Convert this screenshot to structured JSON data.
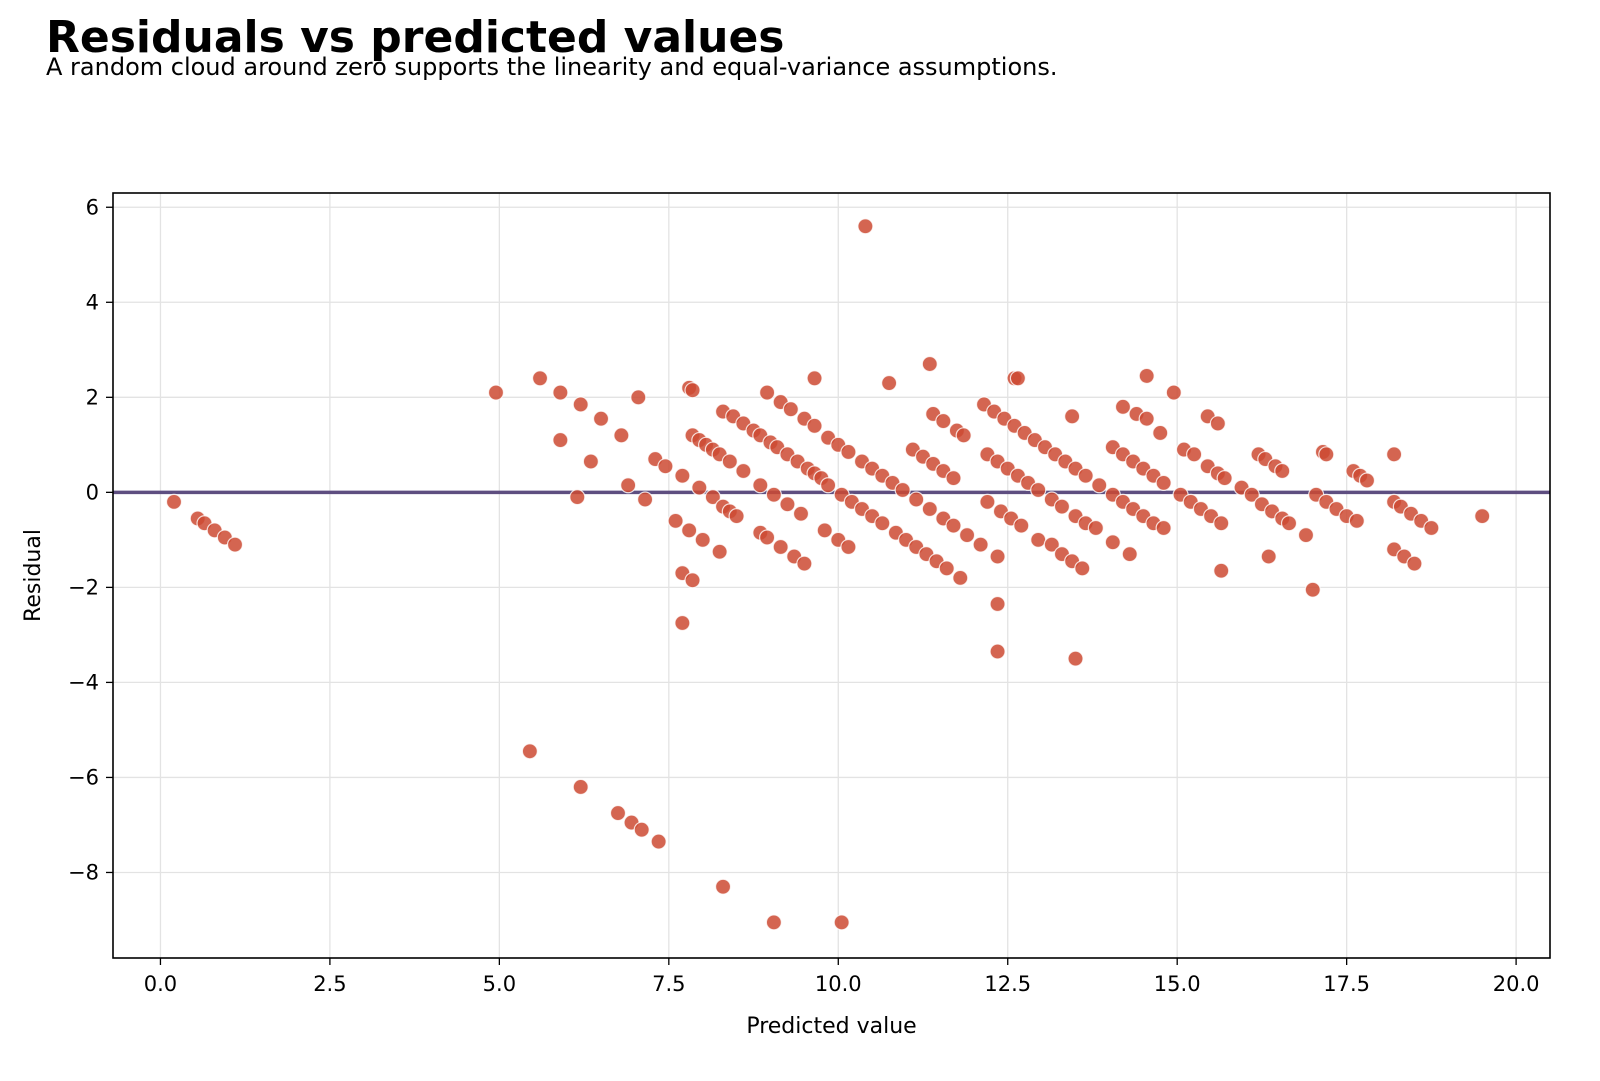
{
  "title": "Residuals vs predicted values",
  "subtitle": "A random cloud around zero supports the linearity and equal-variance assumptions.",
  "chart_data": {
    "type": "scatter",
    "xlabel": "Predicted value",
    "ylabel": "Residual",
    "xlim": [
      -0.7,
      20.5
    ],
    "ylim": [
      -9.8,
      6.3
    ],
    "xticks": [
      0.0,
      2.5,
      5.0,
      7.5,
      10.0,
      12.5,
      15.0,
      17.5,
      20.0
    ],
    "xtick_labels": [
      "0.0",
      "2.5",
      "5.0",
      "7.5",
      "10.0",
      "12.5",
      "15.0",
      "17.5",
      "20.0"
    ],
    "yticks": [
      -8,
      -6,
      -4,
      -2,
      0,
      2,
      4,
      6
    ],
    "ytick_labels": [
      "−8",
      "−6",
      "−4",
      "−2",
      "0",
      "2",
      "4",
      "6"
    ],
    "grid": true,
    "legend": "none",
    "point_color": "#cc4a32",
    "reference_line": {
      "y": 0,
      "color": "#5e4e80"
    },
    "points": [
      [
        0.2,
        -0.2
      ],
      [
        0.55,
        -0.55
      ],
      [
        0.65,
        -0.65
      ],
      [
        0.8,
        -0.8
      ],
      [
        0.95,
        -0.95
      ],
      [
        1.1,
        -1.1
      ],
      [
        4.95,
        2.1
      ],
      [
        5.6,
        2.4
      ],
      [
        5.9,
        2.1
      ],
      [
        5.9,
        1.1
      ],
      [
        6.2,
        1.85
      ],
      [
        6.5,
        1.55
      ],
      [
        6.8,
        1.2
      ],
      [
        7.05,
        2.0
      ],
      [
        6.35,
        0.65
      ],
      [
        6.9,
        0.15
      ],
      [
        6.15,
        -0.1
      ],
      [
        7.15,
        -0.15
      ],
      [
        7.3,
        0.7
      ],
      [
        7.45,
        0.55
      ],
      [
        7.6,
        -0.6
      ],
      [
        7.7,
        0.35
      ],
      [
        7.8,
        -0.8
      ],
      [
        8.0,
        -1.0
      ],
      [
        8.25,
        -1.25
      ],
      [
        7.7,
        -1.7
      ],
      [
        7.85,
        -1.85
      ],
      [
        7.7,
        -2.75
      ],
      [
        7.8,
        2.2
      ],
      [
        7.85,
        2.15
      ],
      [
        7.85,
        1.2
      ],
      [
        7.95,
        1.1
      ],
      [
        8.05,
        1.0
      ],
      [
        8.15,
        0.9
      ],
      [
        8.25,
        0.8
      ],
      [
        8.4,
        0.65
      ],
      [
        7.95,
        0.1
      ],
      [
        8.15,
        -0.1
      ],
      [
        8.3,
        -0.3
      ],
      [
        8.4,
        -0.4
      ],
      [
        8.5,
        -0.5
      ],
      [
        8.6,
        0.45
      ],
      [
        8.3,
        1.7
      ],
      [
        8.45,
        1.6
      ],
      [
        8.6,
        1.45
      ],
      [
        8.75,
        1.3
      ],
      [
        8.85,
        1.2
      ],
      [
        9.0,
        1.05
      ],
      [
        9.1,
        0.95
      ],
      [
        9.25,
        0.8
      ],
      [
        9.4,
        0.65
      ],
      [
        9.55,
        0.5
      ],
      [
        9.65,
        0.4
      ],
      [
        9.75,
        0.3
      ],
      [
        8.85,
        0.15
      ],
      [
        9.05,
        -0.05
      ],
      [
        9.25,
        -0.25
      ],
      [
        9.45,
        -0.45
      ],
      [
        8.85,
        -0.85
      ],
      [
        8.95,
        -0.95
      ],
      [
        9.15,
        -1.15
      ],
      [
        9.35,
        -1.35
      ],
      [
        9.5,
        -1.5
      ],
      [
        8.95,
        2.1
      ],
      [
        9.15,
        1.9
      ],
      [
        9.3,
        1.75
      ],
      [
        9.5,
        1.55
      ],
      [
        9.65,
        1.4
      ],
      [
        9.65,
        2.4
      ],
      [
        9.85,
        1.15
      ],
      [
        10.0,
        1.0
      ],
      [
        10.15,
        0.85
      ],
      [
        10.35,
        0.65
      ],
      [
        10.5,
        0.5
      ],
      [
        10.65,
        0.35
      ],
      [
        10.8,
        0.2
      ],
      [
        9.85,
        0.15
      ],
      [
        10.05,
        -0.05
      ],
      [
        10.2,
        -0.2
      ],
      [
        10.35,
        -0.35
      ],
      [
        10.5,
        -0.5
      ],
      [
        10.65,
        -0.65
      ],
      [
        9.8,
        -0.8
      ],
      [
        10.0,
        -1.0
      ],
      [
        10.15,
        -1.15
      ],
      [
        10.4,
        5.6
      ],
      [
        10.75,
        2.3
      ],
      [
        10.95,
        0.05
      ],
      [
        11.1,
        0.9
      ],
      [
        11.25,
        0.75
      ],
      [
        11.4,
        0.6
      ],
      [
        11.55,
        0.45
      ],
      [
        11.7,
        0.3
      ],
      [
        10.85,
        -0.85
      ],
      [
        11.0,
        -1.0
      ],
      [
        11.15,
        -1.15
      ],
      [
        11.3,
        -1.3
      ],
      [
        11.45,
        -1.45
      ],
      [
        11.6,
        -1.6
      ],
      [
        11.8,
        -1.8
      ],
      [
        11.15,
        -0.15
      ],
      [
        11.35,
        -0.35
      ],
      [
        11.55,
        -0.55
      ],
      [
        11.7,
        -0.7
      ],
      [
        11.9,
        -0.9
      ],
      [
        12.1,
        -1.1
      ],
      [
        11.35,
        2.7
      ],
      [
        11.4,
        1.65
      ],
      [
        11.55,
        1.5
      ],
      [
        11.75,
        1.3
      ],
      [
        11.85,
        1.2
      ],
      [
        12.15,
        1.85
      ],
      [
        12.3,
        1.7
      ],
      [
        12.45,
        1.55
      ],
      [
        12.6,
        1.4
      ],
      [
        12.75,
        1.25
      ],
      [
        12.9,
        1.1
      ],
      [
        13.05,
        0.95
      ],
      [
        12.2,
        0.8
      ],
      [
        12.35,
        0.65
      ],
      [
        12.5,
        0.5
      ],
      [
        12.65,
        0.35
      ],
      [
        12.8,
        0.2
      ],
      [
        12.95,
        0.05
      ],
      [
        12.2,
        -0.2
      ],
      [
        12.4,
        -0.4
      ],
      [
        12.55,
        -0.55
      ],
      [
        12.7,
        -0.7
      ],
      [
        12.95,
        -1.0
      ],
      [
        12.35,
        -1.35
      ],
      [
        12.35,
        -2.35
      ],
      [
        12.35,
        -3.35
      ],
      [
        12.6,
        2.4
      ],
      [
        12.65,
        2.4
      ],
      [
        13.15,
        -1.1
      ],
      [
        13.3,
        -1.3
      ],
      [
        13.45,
        -1.45
      ],
      [
        13.6,
        -1.6
      ],
      [
        13.15,
        -0.15
      ],
      [
        13.3,
        -0.3
      ],
      [
        13.5,
        -0.5
      ],
      [
        13.65,
        -0.65
      ],
      [
        13.8,
        -0.75
      ],
      [
        13.2,
        0.8
      ],
      [
        13.35,
        0.65
      ],
      [
        13.5,
        0.5
      ],
      [
        13.65,
        0.35
      ],
      [
        13.85,
        0.15
      ],
      [
        13.45,
        1.6
      ],
      [
        13.5,
        -3.5
      ],
      [
        14.05,
        0.95
      ],
      [
        14.2,
        0.8
      ],
      [
        14.05,
        -1.05
      ],
      [
        14.3,
        -1.3
      ],
      [
        14.05,
        -0.05
      ],
      [
        14.2,
        -0.2
      ],
      [
        14.35,
        -0.35
      ],
      [
        14.5,
        -0.5
      ],
      [
        14.65,
        -0.65
      ],
      [
        14.8,
        -0.75
      ],
      [
        14.2,
        1.8
      ],
      [
        14.4,
        1.65
      ],
      [
        14.55,
        1.55
      ],
      [
        14.35,
        0.65
      ],
      [
        14.5,
        0.5
      ],
      [
        14.65,
        0.35
      ],
      [
        14.8,
        0.2
      ],
      [
        14.55,
        2.45
      ],
      [
        14.75,
        1.25
      ],
      [
        14.95,
        2.1
      ],
      [
        15.05,
        -0.05
      ],
      [
        15.2,
        -0.2
      ],
      [
        15.35,
        -0.35
      ],
      [
        15.5,
        -0.5
      ],
      [
        15.65,
        -0.65
      ],
      [
        15.1,
        0.9
      ],
      [
        15.25,
        0.8
      ],
      [
        15.45,
        0.55
      ],
      [
        15.6,
        0.4
      ],
      [
        15.7,
        0.3
      ],
      [
        15.45,
        1.6
      ],
      [
        15.6,
        1.45
      ],
      [
        15.65,
        -1.65
      ],
      [
        15.95,
        0.1
      ],
      [
        16.1,
        -0.05
      ],
      [
        16.25,
        -0.25
      ],
      [
        16.4,
        -0.4
      ],
      [
        16.55,
        -0.55
      ],
      [
        16.65,
        -0.65
      ],
      [
        16.2,
        0.8
      ],
      [
        16.3,
        0.7
      ],
      [
        16.45,
        0.55
      ],
      [
        16.55,
        0.45
      ],
      [
        16.35,
        -1.35
      ],
      [
        16.9,
        -0.9
      ],
      [
        17.0,
        -2.05
      ],
      [
        17.05,
        -0.05
      ],
      [
        17.2,
        -0.2
      ],
      [
        17.35,
        -0.35
      ],
      [
        17.5,
        -0.5
      ],
      [
        17.65,
        -0.6
      ],
      [
        17.15,
        0.85
      ],
      [
        17.2,
        0.8
      ],
      [
        17.6,
        0.45
      ],
      [
        17.7,
        0.35
      ],
      [
        17.8,
        0.25
      ],
      [
        18.2,
        0.8
      ],
      [
        18.2,
        -0.2
      ],
      [
        18.3,
        -0.3
      ],
      [
        18.45,
        -0.45
      ],
      [
        18.6,
        -0.6
      ],
      [
        18.75,
        -0.75
      ],
      [
        18.2,
        -1.2
      ],
      [
        18.35,
        -1.35
      ],
      [
        18.5,
        -1.5
      ],
      [
        19.5,
        -0.5
      ],
      [
        5.45,
        -5.45
      ],
      [
        6.2,
        -6.2
      ],
      [
        6.75,
        -6.75
      ],
      [
        6.95,
        -6.95
      ],
      [
        7.1,
        -7.1
      ],
      [
        7.35,
        -7.35
      ],
      [
        8.3,
        -8.3
      ],
      [
        9.05,
        -9.05
      ],
      [
        10.05,
        -9.05
      ]
    ]
  }
}
